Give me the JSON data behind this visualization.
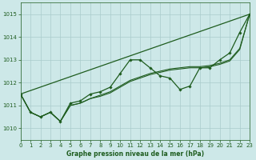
{
  "xlabel": "Graphe pression niveau de la mer (hPa)",
  "xlim": [
    0,
    23
  ],
  "ylim": [
    1009.5,
    1015.5
  ],
  "yticks": [
    1010,
    1011,
    1012,
    1013,
    1014,
    1015
  ],
  "xticks": [
    0,
    1,
    2,
    3,
    4,
    5,
    6,
    7,
    8,
    9,
    10,
    11,
    12,
    13,
    14,
    15,
    16,
    17,
    18,
    19,
    20,
    21,
    22,
    23
  ],
  "background_color": "#cde8e8",
  "grid_color": "#aacccc",
  "line_color": "#1e5c1e",
  "straight_line": [
    1011.5,
    1015.0
  ],
  "line1": [
    1011.5,
    1010.7,
    1010.5,
    1010.7,
    1010.3,
    1011.1,
    1011.2,
    1011.5,
    1011.6,
    1011.8,
    1012.4,
    1013.0,
    1013.0,
    1012.65,
    1012.3,
    1012.2,
    1011.7,
    1011.85,
    1012.65,
    1012.65,
    1013.0,
    1013.3,
    1014.2,
    1015.0
  ],
  "line2": [
    1011.5,
    1010.7,
    1010.5,
    1010.7,
    1010.3,
    1011.0,
    1011.1,
    1011.3,
    1011.45,
    1011.6,
    1011.85,
    1012.1,
    1012.25,
    1012.4,
    1012.5,
    1012.6,
    1012.65,
    1012.7,
    1012.7,
    1012.75,
    1012.85,
    1013.0,
    1013.5,
    1015.0
  ],
  "line3": [
    1011.5,
    1010.7,
    1010.5,
    1010.7,
    1010.3,
    1011.0,
    1011.1,
    1011.3,
    1011.4,
    1011.55,
    1011.8,
    1012.05,
    1012.2,
    1012.35,
    1012.45,
    1012.55,
    1012.6,
    1012.65,
    1012.65,
    1012.7,
    1012.8,
    1012.95,
    1013.45,
    1015.0
  ]
}
